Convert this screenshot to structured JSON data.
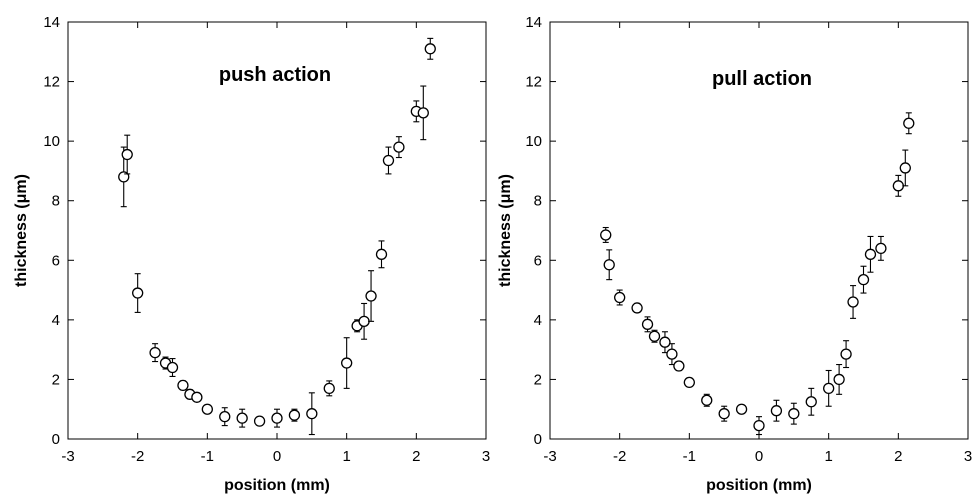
{
  "chart_data": [
    {
      "type": "scatter",
      "annotation": "push action",
      "xlabel": "position (mm)",
      "ylabel": "thickness (μm)",
      "xlim": [
        -3,
        3
      ],
      "ylim": [
        0,
        14
      ],
      "xticks": [
        -3,
        -2,
        -1,
        0,
        1,
        2,
        3
      ],
      "yticks": [
        0,
        2,
        4,
        6,
        8,
        10,
        12,
        14
      ],
      "grid": false,
      "marker": "open-circle",
      "color": "#000000",
      "points": [
        {
          "x": -2.2,
          "y": 8.8,
          "err": 1.0
        },
        {
          "x": -2.15,
          "y": 9.55,
          "err": 0.65
        },
        {
          "x": -2.0,
          "y": 4.9,
          "err": 0.65
        },
        {
          "x": -1.75,
          "y": 2.9,
          "err": 0.3
        },
        {
          "x": -1.6,
          "y": 2.55,
          "err": 0.2
        },
        {
          "x": -1.5,
          "y": 2.4,
          "err": 0.3
        },
        {
          "x": -1.35,
          "y": 1.8,
          "err": 0.15
        },
        {
          "x": -1.25,
          "y": 1.5,
          "err": 0.15
        },
        {
          "x": -1.15,
          "y": 1.4,
          "err": 0.1
        },
        {
          "x": -1.0,
          "y": 1.0,
          "err": 0.1
        },
        {
          "x": -0.75,
          "y": 0.75,
          "err": 0.3
        },
        {
          "x": -0.5,
          "y": 0.7,
          "err": 0.3
        },
        {
          "x": -0.25,
          "y": 0.6,
          "err": 0.1
        },
        {
          "x": 0.0,
          "y": 0.7,
          "err": 0.3
        },
        {
          "x": 0.25,
          "y": 0.8,
          "err": 0.2
        },
        {
          "x": 0.5,
          "y": 0.85,
          "err": 0.7
        },
        {
          "x": 0.75,
          "y": 1.7,
          "err": 0.25
        },
        {
          "x": 1.0,
          "y": 2.55,
          "err": 0.85
        },
        {
          "x": 1.15,
          "y": 3.8,
          "err": 0.2
        },
        {
          "x": 1.25,
          "y": 3.95,
          "err": 0.6
        },
        {
          "x": 1.35,
          "y": 4.8,
          "err": 0.85
        },
        {
          "x": 1.5,
          "y": 6.2,
          "err": 0.45
        },
        {
          "x": 1.6,
          "y": 9.35,
          "err": 0.45
        },
        {
          "x": 1.75,
          "y": 9.8,
          "err": 0.35
        },
        {
          "x": 2.0,
          "y": 11.0,
          "err": 0.35
        },
        {
          "x": 2.1,
          "y": 10.95,
          "err": 0.9
        },
        {
          "x": 2.2,
          "y": 13.1,
          "err": 0.35
        }
      ]
    },
    {
      "type": "scatter",
      "annotation": "pull action",
      "xlabel": "position (mm)",
      "ylabel": "thickness (μm)",
      "xlim": [
        -3,
        3
      ],
      "ylim": [
        0,
        14
      ],
      "xticks": [
        -3,
        -2,
        -1,
        0,
        1,
        2,
        3
      ],
      "yticks": [
        0,
        2,
        4,
        6,
        8,
        10,
        12,
        14
      ],
      "grid": false,
      "marker": "open-circle",
      "color": "#000000",
      "points": [
        {
          "x": -2.2,
          "y": 6.85,
          "err": 0.25
        },
        {
          "x": -2.15,
          "y": 5.85,
          "err": 0.5
        },
        {
          "x": -2.0,
          "y": 4.75,
          "err": 0.25
        },
        {
          "x": -1.75,
          "y": 4.4,
          "err": 0.15
        },
        {
          "x": -1.6,
          "y": 3.85,
          "err": 0.25
        },
        {
          "x": -1.5,
          "y": 3.45,
          "err": 0.2
        },
        {
          "x": -1.35,
          "y": 3.25,
          "err": 0.35
        },
        {
          "x": -1.25,
          "y": 2.85,
          "err": 0.35
        },
        {
          "x": -1.15,
          "y": 2.45,
          "err": 0.15
        },
        {
          "x": -1.0,
          "y": 1.9,
          "err": 0.1
        },
        {
          "x": -0.75,
          "y": 1.3,
          "err": 0.2
        },
        {
          "x": -0.5,
          "y": 0.85,
          "err": 0.25
        },
        {
          "x": -0.25,
          "y": 1.0,
          "err": 0.1
        },
        {
          "x": 0.0,
          "y": 0.45,
          "err": 0.3
        },
        {
          "x": 0.25,
          "y": 0.95,
          "err": 0.35
        },
        {
          "x": 0.5,
          "y": 0.85,
          "err": 0.35
        },
        {
          "x": 0.75,
          "y": 1.25,
          "err": 0.45
        },
        {
          "x": 1.0,
          "y": 1.7,
          "err": 0.6
        },
        {
          "x": 1.15,
          "y": 2.0,
          "err": 0.5
        },
        {
          "x": 1.25,
          "y": 2.85,
          "err": 0.45
        },
        {
          "x": 1.35,
          "y": 4.6,
          "err": 0.55
        },
        {
          "x": 1.5,
          "y": 5.35,
          "err": 0.45
        },
        {
          "x": 1.6,
          "y": 6.2,
          "err": 0.6
        },
        {
          "x": 1.75,
          "y": 6.4,
          "err": 0.4
        },
        {
          "x": 2.0,
          "y": 8.5,
          "err": 0.35
        },
        {
          "x": 2.1,
          "y": 9.1,
          "err": 0.6
        },
        {
          "x": 2.15,
          "y": 10.6,
          "err": 0.35
        }
      ]
    }
  ]
}
